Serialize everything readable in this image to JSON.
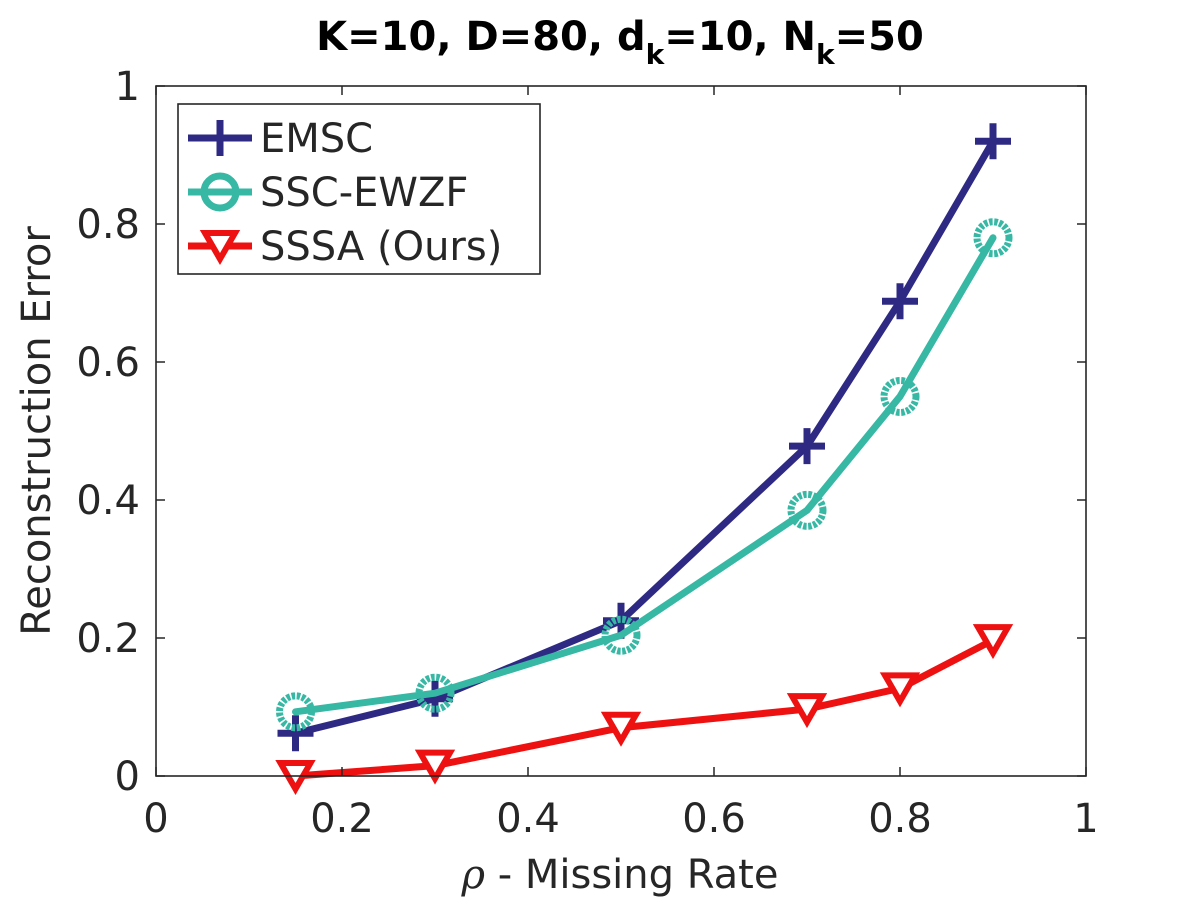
{
  "chart_data": {
    "type": "line",
    "title_parts": {
      "a": "K=10, D=80, d",
      "a_sub": "k",
      "b": "=10, N",
      "b_sub": "k",
      "c": "=50"
    },
    "xlabel_symbol": "ρ",
    "xlabel_text": " - Missing Rate",
    "ylabel": "Reconstruction Error",
    "xlim": [
      0,
      1
    ],
    "ylim": [
      0,
      1
    ],
    "x_ticks": [
      0,
      0.2,
      0.4,
      0.6,
      0.8,
      1
    ],
    "x_tick_labels": [
      "0",
      "0.2",
      "0.4",
      "0.6",
      "0.8",
      "1"
    ],
    "y_ticks": [
      0,
      0.2,
      0.4,
      0.6,
      0.8,
      1
    ],
    "y_tick_labels": [
      "0",
      "0.2",
      "0.4",
      "0.6",
      "0.8",
      "1"
    ],
    "legend_position": "top-left",
    "series": [
      {
        "name": "EMSC",
        "color": "#2e2a84",
        "marker": "plus",
        "x": [
          0.15,
          0.3,
          0.5,
          0.7,
          0.8,
          0.9
        ],
        "y": [
          0.062,
          0.112,
          0.225,
          0.478,
          0.688,
          0.92
        ]
      },
      {
        "name": "SSC-EWZF",
        "color": "#36b8a5",
        "marker": "circle",
        "x": [
          0.15,
          0.3,
          0.5,
          0.7,
          0.8,
          0.9
        ],
        "y": [
          0.093,
          0.12,
          0.204,
          0.385,
          0.55,
          0.78
        ]
      },
      {
        "name": "SSSA (Ours)",
        "color": "#ee1111",
        "marker": "triangle-down",
        "x": [
          0.15,
          0.3,
          0.5,
          0.7,
          0.8,
          0.9
        ],
        "y": [
          0.0,
          0.015,
          0.07,
          0.097,
          0.127,
          0.197
        ]
      }
    ]
  }
}
